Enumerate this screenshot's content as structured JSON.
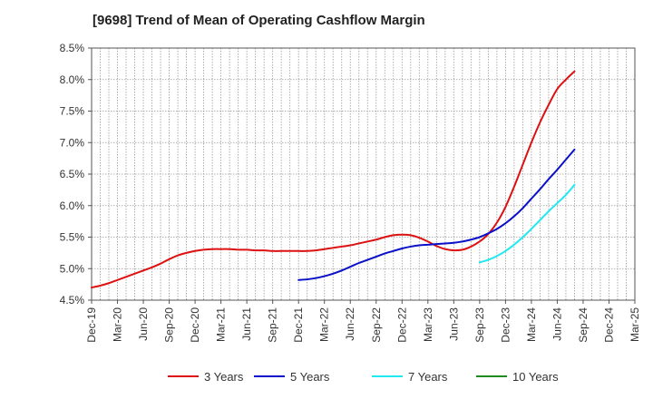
{
  "chart_data": {
    "type": "line",
    "title": "[9698]  Trend of Mean of Operating Cashflow Margin",
    "xlabel": "",
    "ylabel": "",
    "ylim": [
      4.5,
      8.5
    ],
    "yticks": [
      4.5,
      5.0,
      5.5,
      6.0,
      6.5,
      7.0,
      7.5,
      8.0,
      8.5
    ],
    "ytick_labels": [
      "4.5%",
      "5.0%",
      "5.5%",
      "6.0%",
      "6.5%",
      "7.0%",
      "7.5%",
      "8.0%",
      "8.5%"
    ],
    "x_start": "Dec-19",
    "x_months_total": 63,
    "xtick_step_months": 3,
    "xtick_labels": [
      "Dec-19",
      "Mar-20",
      "Jun-20",
      "Sep-20",
      "Dec-20",
      "Mar-21",
      "Jun-21",
      "Sep-21",
      "Dec-21",
      "Mar-22",
      "Jun-22",
      "Sep-22",
      "Dec-22",
      "Mar-23",
      "Jun-23",
      "Sep-23",
      "Dec-23",
      "Mar-24",
      "Jun-24",
      "Sep-24",
      "Dec-24",
      "Mar-25"
    ],
    "grid": true,
    "legend_position": "bottom",
    "series": [
      {
        "name": "3 Years",
        "color": "#dd1111",
        "points": [
          [
            0,
            4.7
          ],
          [
            1,
            4.73
          ],
          [
            2,
            4.77
          ],
          [
            3,
            4.82
          ],
          [
            4,
            4.87
          ],
          [
            5,
            4.92
          ],
          [
            6,
            4.97
          ],
          [
            7,
            5.02
          ],
          [
            8,
            5.08
          ],
          [
            9,
            5.15
          ],
          [
            10,
            5.21
          ],
          [
            11,
            5.25
          ],
          [
            12,
            5.28
          ],
          [
            13,
            5.3
          ],
          [
            14,
            5.31
          ],
          [
            15,
            5.31
          ],
          [
            16,
            5.31
          ],
          [
            17,
            5.3
          ],
          [
            18,
            5.3
          ],
          [
            19,
            5.29
          ],
          [
            20,
            5.29
          ],
          [
            21,
            5.28
          ],
          [
            22,
            5.28
          ],
          [
            23,
            5.28
          ],
          [
            24,
            5.28
          ],
          [
            25,
            5.28
          ],
          [
            26,
            5.29
          ],
          [
            27,
            5.31
          ],
          [
            28,
            5.33
          ],
          [
            29,
            5.35
          ],
          [
            30,
            5.37
          ],
          [
            31,
            5.4
          ],
          [
            32,
            5.43
          ],
          [
            33,
            5.46
          ],
          [
            34,
            5.5
          ],
          [
            35,
            5.53
          ],
          [
            36,
            5.54
          ],
          [
            37,
            5.53
          ],
          [
            38,
            5.49
          ],
          [
            39,
            5.43
          ],
          [
            40,
            5.36
          ],
          [
            41,
            5.31
          ],
          [
            42,
            5.29
          ],
          [
            43,
            5.3
          ],
          [
            44,
            5.35
          ],
          [
            45,
            5.43
          ],
          [
            46,
            5.55
          ],
          [
            47,
            5.73
          ],
          [
            48,
            5.98
          ],
          [
            49,
            6.3
          ],
          [
            50,
            6.65
          ],
          [
            51,
            7.0
          ],
          [
            52,
            7.32
          ],
          [
            53,
            7.6
          ],
          [
            54,
            7.85
          ],
          [
            55,
            8.0
          ],
          [
            56,
            8.13
          ]
        ]
      },
      {
        "name": "5 Years",
        "color": "#0a10c8",
        "points": [
          [
            24,
            4.82
          ],
          [
            25,
            4.83
          ],
          [
            26,
            4.85
          ],
          [
            27,
            4.88
          ],
          [
            28,
            4.92
          ],
          [
            29,
            4.97
          ],
          [
            30,
            5.03
          ],
          [
            31,
            5.09
          ],
          [
            32,
            5.14
          ],
          [
            33,
            5.19
          ],
          [
            34,
            5.24
          ],
          [
            35,
            5.28
          ],
          [
            36,
            5.32
          ],
          [
            37,
            5.35
          ],
          [
            38,
            5.37
          ],
          [
            39,
            5.38
          ],
          [
            40,
            5.39
          ],
          [
            41,
            5.4
          ],
          [
            42,
            5.41
          ],
          [
            43,
            5.43
          ],
          [
            44,
            5.46
          ],
          [
            45,
            5.5
          ],
          [
            46,
            5.56
          ],
          [
            47,
            5.63
          ],
          [
            48,
            5.72
          ],
          [
            49,
            5.83
          ],
          [
            50,
            5.96
          ],
          [
            51,
            6.11
          ],
          [
            52,
            6.26
          ],
          [
            53,
            6.42
          ],
          [
            54,
            6.57
          ],
          [
            55,
            6.73
          ],
          [
            56,
            6.89
          ]
        ]
      },
      {
        "name": "7 Years",
        "color": "#22e8f0",
        "points": [
          [
            45,
            5.1
          ],
          [
            46,
            5.14
          ],
          [
            47,
            5.2
          ],
          [
            48,
            5.28
          ],
          [
            49,
            5.38
          ],
          [
            50,
            5.5
          ],
          [
            51,
            5.63
          ],
          [
            52,
            5.77
          ],
          [
            53,
            5.91
          ],
          [
            54,
            6.04
          ],
          [
            55,
            6.17
          ],
          [
            56,
            6.33
          ]
        ]
      },
      {
        "name": "10 Years",
        "color": "#1f8a1f",
        "points": []
      }
    ]
  }
}
